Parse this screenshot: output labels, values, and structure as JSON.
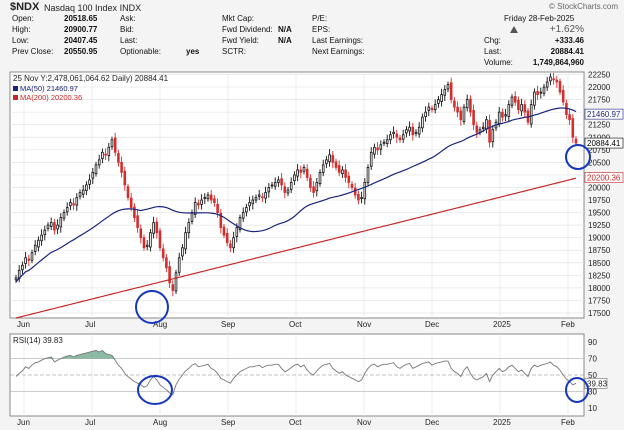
{
  "title": {
    "symbol": "$NDX",
    "name": "Nasdaq 100 Index",
    "exchange": "INDX",
    "brand": "© StockCharts.com"
  },
  "header": {
    "open_label": "Open:",
    "open": "20518.65",
    "high_label": "High:",
    "high": "20900.77",
    "low_label": "Low:",
    "low": "20407.45",
    "prev_label": "Prev Close:",
    "prev": "20550.95",
    "ask_label": "Ask:",
    "ask": "",
    "bid_label": "Bid:",
    "bid": "",
    "last_label": "Last:",
    "last": "",
    "optionable_label": "Optionable:",
    "optionable": "yes",
    "mktcap_label": "Mkt Cap:",
    "mktcap": "",
    "fwddiv_label": "Fwd Dividend:",
    "fwddiv": "N/A",
    "fwdyield_label": "Fwd Yield:",
    "fwdyield": "N/A",
    "sctr_label": "SCTR:",
    "sctr": "",
    "pe_label": "P/E:",
    "pe": "",
    "eps_label": "EPS:",
    "eps": "",
    "lastearn_label": "Last Earnings:",
    "lastearn": "",
    "nextearn_label": "Next Earnings:",
    "nextearn": "",
    "date": "Friday   28-Feb-2025",
    "pct": "+1.62%",
    "chg_label": "Chg:",
    "chg": "+333.46",
    "last2_label": "Last:",
    "last2": "20884.41",
    "volume_label": "Volume:",
    "volume": "1,749,864,960"
  },
  "chart_data": {
    "type": "candlestick",
    "info_line": "25 Nov Y:2,478,061,064.62 Daily) 20884.41",
    "legend": [
      {
        "name": "MA(50) 21460.97",
        "color": "#1a237e"
      },
      {
        "name": "MA(200) 20200.36",
        "color": "#c62828"
      }
    ],
    "price_ticks": [
      17500,
      17750,
      18000,
      18250,
      18500,
      18750,
      19000,
      19250,
      19500,
      19750,
      20000,
      20250,
      20500,
      20750,
      21000,
      21250,
      21500,
      21750,
      22000,
      22250
    ],
    "ylim": [
      17400,
      22300
    ],
    "xlabels": [
      "Jun",
      "Jul",
      "Aug",
      "Sep",
      "Oct",
      "Nov",
      "Dec",
      "2025",
      "Feb"
    ],
    "price_labels": [
      {
        "label": "21460.97",
        "value": 21460.97,
        "color": "#1a237e"
      },
      {
        "label": "20884.41",
        "value": 20884.41,
        "color": "#000000"
      },
      {
        "label": "20200.36",
        "value": 20200.36,
        "color": "#c62828"
      }
    ],
    "closes": [
      18200,
      18350,
      18450,
      18600,
      18550,
      18700,
      18850,
      18950,
      19050,
      19150,
      19250,
      19300,
      19150,
      19250,
      19400,
      19500,
      19600,
      19700,
      19650,
      19800,
      19900,
      19950,
      20050,
      20150,
      20300,
      20450,
      20550,
      20700,
      20650,
      20800,
      20950,
      20700,
      20500,
      20300,
      20050,
      19800,
      19600,
      19400,
      19200,
      19000,
      18800,
      18850,
      19100,
      19300,
      19100,
      18800,
      18600,
      18400,
      18100,
      17950,
      18300,
      18600,
      18800,
      19100,
      19300,
      19500,
      19700,
      19650,
      19750,
      19800,
      19850,
      19750,
      19700,
      19500,
      19200,
      19050,
      18900,
      18800,
      19000,
      19200,
      19400,
      19500,
      19600,
      19700,
      19750,
      19800,
      19850,
      19800,
      19900,
      20000,
      20050,
      20100,
      20150,
      20050,
      19900,
      19950,
      20100,
      20250,
      20350,
      20300,
      20400,
      20200,
      20000,
      19900,
      20100,
      20300,
      20450,
      20550,
      20650,
      20500,
      20400,
      20300,
      20350,
      20200,
      20100,
      20000,
      19850,
      19750,
      19800,
      20100,
      20400,
      20700,
      20800,
      20750,
      20850,
      20900,
      20950,
      21050,
      21100,
      21000,
      20950,
      21050,
      21150,
      21200,
      21050,
      21100,
      21200,
      21400,
      21500,
      21600,
      21550,
      21650,
      21750,
      21850,
      21950,
      22050,
      21750,
      21600,
      21500,
      21350,
      21600,
      21750,
      21500,
      21250,
      21100,
      21150,
      21200,
      21350,
      20900,
      21150,
      21300,
      21500,
      21400,
      21450,
      21650,
      21800,
      21700,
      21550,
      21650,
      21500,
      21300,
      21650,
      21900,
      21850,
      21900,
      22000,
      22100,
      22200,
      22150,
      22100,
      21900,
      21700,
      21450,
      21350,
      21000,
      20884
    ],
    "rsi_label": "RSI(14) 39.83",
    "rsi_ticks": [
      10,
      30,
      50,
      70,
      90
    ],
    "rsi_last": "39.83",
    "rsi": [
      48,
      52,
      55,
      60,
      58,
      62,
      65,
      66,
      68,
      70,
      71,
      72,
      66,
      68,
      70,
      72,
      73,
      74,
      72,
      74,
      75,
      76,
      77,
      78,
      79,
      80,
      78,
      80,
      76,
      75,
      74,
      68,
      62,
      58,
      52,
      48,
      45,
      42,
      40,
      38,
      35,
      37,
      44,
      48,
      44,
      38,
      35,
      32,
      28,
      26,
      38,
      45,
      50,
      55,
      58,
      62,
      64,
      60,
      61,
      62,
      63,
      58,
      56,
      52,
      46,
      44,
      42,
      40,
      46,
      50,
      54,
      56,
      58,
      60,
      60,
      61,
      62,
      59,
      61,
      62,
      62,
      63,
      63,
      58,
      54,
      56,
      59,
      62,
      63,
      60,
      62,
      56,
      52,
      50,
      55,
      59,
      62,
      63,
      64,
      58,
      55,
      52,
      54,
      50,
      48,
      46,
      44,
      42,
      44,
      52,
      58,
      62,
      63,
      60,
      62,
      63,
      63,
      64,
      65,
      60,
      58,
      61,
      63,
      64,
      58,
      60,
      62,
      64,
      65,
      66,
      62,
      64,
      65,
      66,
      67,
      67,
      58,
      54,
      52,
      48,
      56,
      60,
      52,
      46,
      44,
      46,
      48,
      52,
      42,
      50,
      54,
      58,
      54,
      56,
      60,
      62,
      58,
      54,
      56,
      52,
      48,
      58,
      62,
      60,
      62,
      63,
      64,
      66,
      62,
      60,
      56,
      50,
      45,
      42,
      38,
      39.83
    ],
    "annotations": [
      {
        "panel": "price",
        "shape": "circle"
      },
      {
        "panel": "price",
        "shape": "circle"
      },
      {
        "panel": "rsi",
        "shape": "circle"
      },
      {
        "panel": "rsi",
        "shape": "circle"
      }
    ]
  }
}
